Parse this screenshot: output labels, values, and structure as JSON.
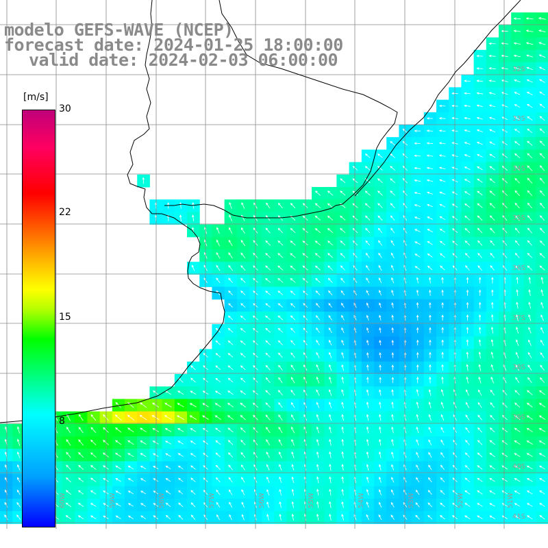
{
  "header": {
    "line1": "modelo GEFS-WAVE (NCEP)",
    "line2": "forecast date: 2024-01-25 18:00:00",
    "line3": "valid date: 2024-02-03 06:00:00"
  },
  "colorbar": {
    "unit": "[m/s]",
    "ticks": [
      "30",
      "22",
      "15",
      "8"
    ],
    "tick_values": [
      30,
      22,
      15,
      8
    ],
    "min": 0,
    "max": 30
  },
  "latitude_labels": [
    "32S",
    "33S",
    "34S",
    "35S",
    "36S",
    "37S",
    "38S",
    "39S",
    "40S",
    "41S"
  ],
  "longitude_labels": [
    "60W",
    "59W",
    "58W",
    "57W",
    "56W",
    "55W",
    "54W",
    "53W",
    "52W",
    "51W"
  ],
  "colors": {
    "land": "#ffffff",
    "coastline": "#000000",
    "gridline": "#888888",
    "arrow": "#ffffff",
    "title": "#8a8a8a"
  }
}
